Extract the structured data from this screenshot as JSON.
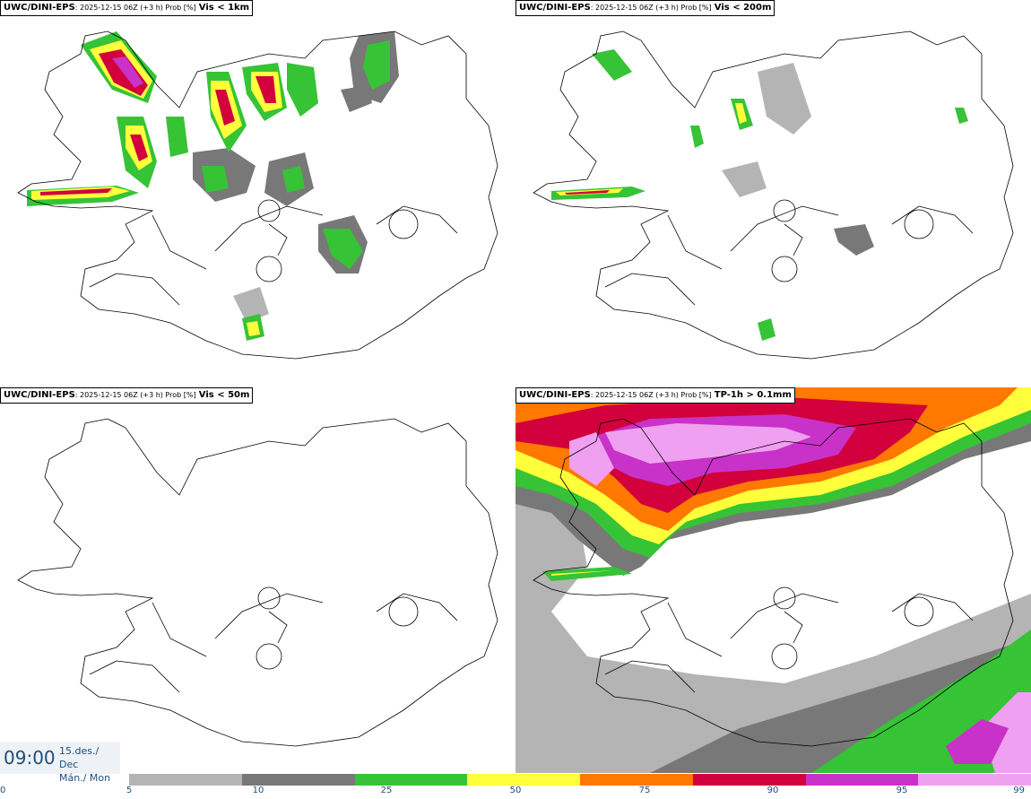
{
  "panels": [
    {
      "model": "UWC/DINI-EPS",
      "meta": ": 2025-12-15 06Z (+3 h) Prob [%]",
      "field": "Vis < 1km"
    },
    {
      "model": "UWC/DINI-EPS",
      "meta": ": 2025-12-15 06Z (+3 h) Prob [%]",
      "field": "Vis < 200m"
    },
    {
      "model": "UWC/DINI-EPS",
      "meta": ": 2025-12-15 06Z (+3 h) Prob [%]",
      "field": "Vis < 50m"
    },
    {
      "model": "UWC/DINI-EPS",
      "meta": ": 2025-12-15 06Z (+3 h) Prob [%]",
      "field": "TP-1h > 0.1mm"
    }
  ],
  "time": {
    "clock": "09:00",
    "date_line": "15.des./ Dec",
    "day_line": "Mán./ Mon"
  },
  "legend": {
    "colors": [
      "#b4b4b4",
      "#787878",
      "#36c336",
      "#ffff3c",
      "#ff7800",
      "#d2003c",
      "#c832c8",
      "#f0a0f0"
    ],
    "ticks": [
      "0",
      "5",
      "10",
      "25",
      "50",
      "75",
      "90",
      "95",
      "99"
    ]
  }
}
